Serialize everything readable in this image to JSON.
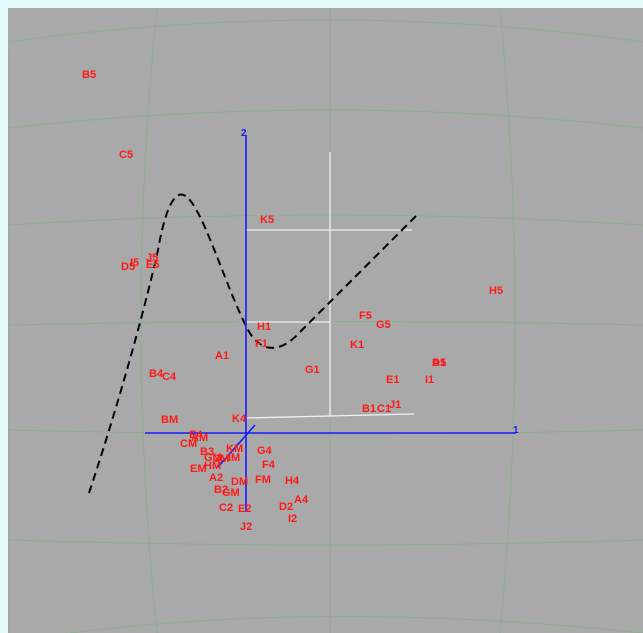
{
  "colors": {
    "page_background": "#e3fbfb",
    "viewport_background": "#a9a9a9",
    "grid_line": "#8fae8f",
    "plane_line": "#f2f2f2",
    "axis": "#1a1aff",
    "point_label": "#ff1a1a",
    "curve": "#000000"
  },
  "axes": {
    "x_label": "1",
    "y_label": "2"
  },
  "curve_style": "dashed",
  "points": [
    {
      "label": "B5"
    },
    {
      "label": "C5"
    },
    {
      "label": "K5"
    },
    {
      "label": "I5"
    },
    {
      "label": "J5"
    },
    {
      "label": "D5"
    },
    {
      "label": "E5"
    },
    {
      "label": "H5"
    },
    {
      "label": "F5"
    },
    {
      "label": "G5"
    },
    {
      "label": "H1"
    },
    {
      "label": "F1"
    },
    {
      "label": "K1"
    },
    {
      "label": "A1"
    },
    {
      "label": "D1"
    },
    {
      "label": "A5"
    },
    {
      "label": "B4"
    },
    {
      "label": "C4"
    },
    {
      "label": "G1"
    },
    {
      "label": "E1"
    },
    {
      "label": "I1"
    },
    {
      "label": "B1"
    },
    {
      "label": "C1"
    },
    {
      "label": "J1"
    },
    {
      "label": "BM"
    },
    {
      "label": "K4"
    },
    {
      "label": "E4"
    },
    {
      "label": "CM"
    },
    {
      "label": "AM"
    },
    {
      "label": "B3"
    },
    {
      "label": "KM"
    },
    {
      "label": "GM"
    },
    {
      "label": "JM"
    },
    {
      "label": "IM"
    },
    {
      "label": "G4"
    },
    {
      "label": "F4"
    },
    {
      "label": "EM"
    },
    {
      "label": "A2"
    },
    {
      "label": "HM"
    },
    {
      "label": "DM"
    },
    {
      "label": "FM"
    },
    {
      "label": "H4"
    },
    {
      "label": "B2"
    },
    {
      "label": "GM"
    },
    {
      "label": "C2"
    },
    {
      "label": "E2"
    },
    {
      "label": "D2"
    },
    {
      "label": "A4"
    },
    {
      "label": "I2"
    },
    {
      "label": "J2"
    }
  ]
}
